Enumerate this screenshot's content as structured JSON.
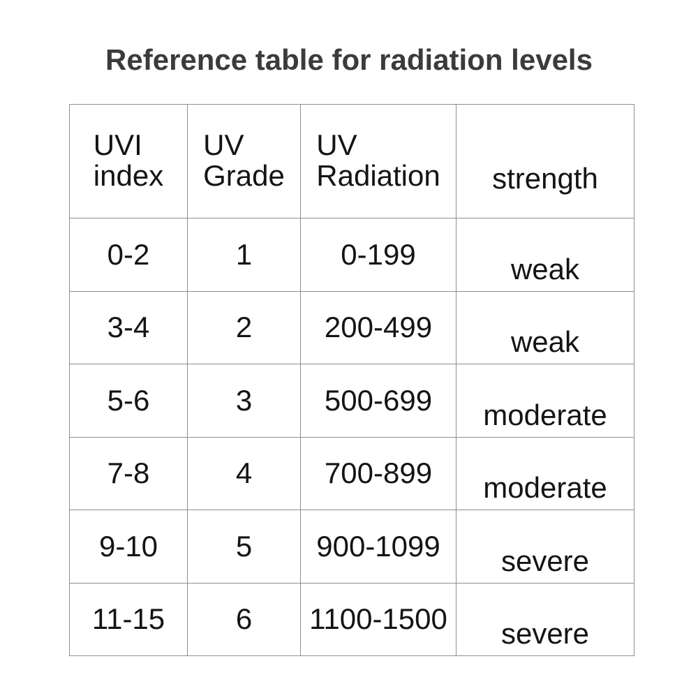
{
  "title": "Reference table for radiation levels",
  "chart_data": {
    "type": "table",
    "title": "Reference table for radiation levels",
    "columns": [
      {
        "id": "uvi-index",
        "label": "UVI index",
        "label_lines": [
          "UVI",
          "index"
        ]
      },
      {
        "id": "uv-grade",
        "label": "UV Grade",
        "label_lines": [
          "UV",
          "Grade"
        ]
      },
      {
        "id": "uv-radiation",
        "label": "UV Radiation",
        "label_lines": [
          "UV",
          "Radiation"
        ]
      },
      {
        "id": "strength",
        "label": "strength",
        "label_lines": [
          "strength"
        ]
      }
    ],
    "rows": [
      [
        "0-2",
        "1",
        "0-199",
        "weak"
      ],
      [
        "3-4",
        "2",
        "200-499",
        "weak"
      ],
      [
        "5-6",
        "3",
        "500-699",
        "moderate"
      ],
      [
        "7-8",
        "4",
        "700-899",
        "moderate"
      ],
      [
        "9-10",
        "5",
        "900-1099",
        "severe"
      ],
      [
        "11-15",
        "6",
        "1100-1500",
        "severe"
      ]
    ]
  },
  "colors": {
    "background": "#ffffff",
    "title_text": "#3b3b3b",
    "table_text": "#141414",
    "border": "#8f8f8f"
  }
}
